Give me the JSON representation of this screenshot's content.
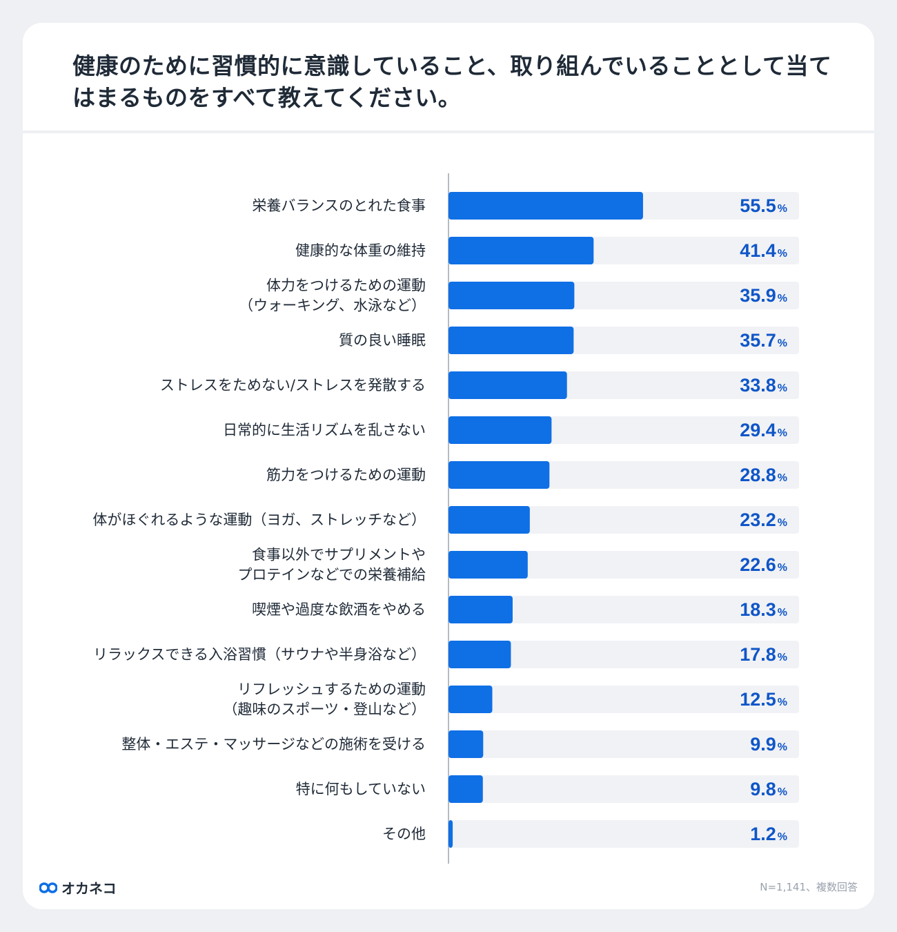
{
  "title": "健康のために習慣的に意識していること、取り組んでいることとして当てはまるものをすべて教えてください。",
  "footer": {
    "logo": "オカネコ",
    "note": "N=1,141、複数回答"
  },
  "colors": {
    "bar": "#0f6fe5",
    "track": "#f1f2f5",
    "value": "#0f56c8",
    "label": "#1f2a37",
    "axis": "#b5bac2"
  },
  "chart_data": {
    "type": "bar",
    "orientation": "horizontal",
    "unit": "%",
    "xlim": [
      0,
      100
    ],
    "categories": [
      [
        "栄養バランスのとれた食事"
      ],
      [
        "健康的な体重の維持"
      ],
      [
        "体力をつけるための運動",
        "（ウォーキング、水泳など）"
      ],
      [
        "質の良い睡眠"
      ],
      [
        "ストレスをためない/ストレスを発散する"
      ],
      [
        "日常的に生活リズムを乱さない"
      ],
      [
        "筋力をつけるための運動"
      ],
      [
        "体がほぐれるような運動（ヨガ、ストレッチなど）"
      ],
      [
        "食事以外でサプリメントや",
        "プロテインなどでの栄養補給"
      ],
      [
        "喫煙や過度な飲酒をやめる"
      ],
      [
        "リラックスできる入浴習慣（サウナや半身浴など）"
      ],
      [
        "リフレッシュするための運動",
        "（趣味のスポーツ・登山など）"
      ],
      [
        "整体・エステ・マッサージなどの施術を受ける"
      ],
      [
        "特に何もしていない"
      ],
      [
        "その他"
      ]
    ],
    "values": [
      55.5,
      41.4,
      35.9,
      35.7,
      33.8,
      29.4,
      28.8,
      23.2,
      22.6,
      18.3,
      17.8,
      12.5,
      9.9,
      9.8,
      1.2
    ],
    "value_labels": [
      "55.5",
      "41.4",
      "35.9",
      "35.7",
      "33.8",
      "29.4",
      "28.8",
      "23.2",
      "22.6",
      "18.3",
      "17.8",
      "12.5",
      "9.9",
      "9.8",
      "1.2"
    ]
  }
}
